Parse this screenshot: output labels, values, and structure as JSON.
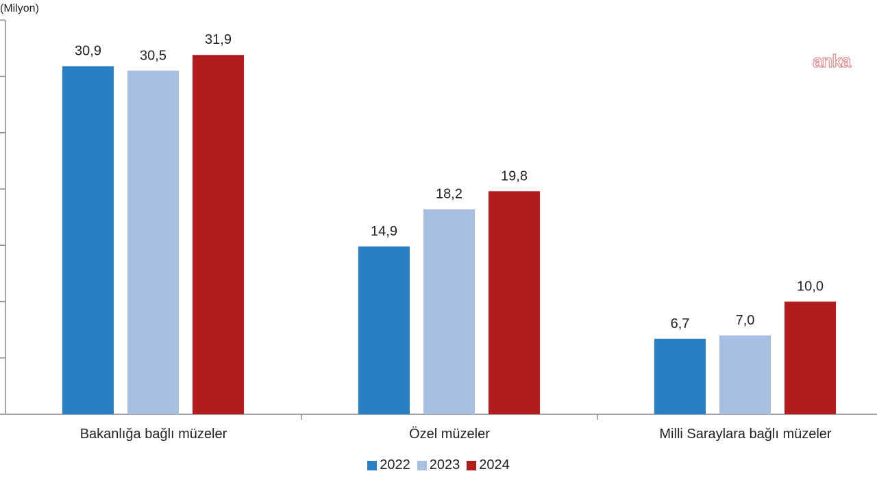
{
  "watermark": "anka",
  "chart_data": {
    "type": "bar",
    "unit_label": "(Milyon)",
    "categories": [
      "Bakanlığa bağlı müzeler",
      "Özel müzeler",
      "Milli Saraylara bağlı müzeler"
    ],
    "series": [
      {
        "name": "2022",
        "color": "#2a7fc4",
        "values": [
          30.9,
          14.9,
          6.7
        ],
        "labels": [
          "30,9",
          "14,9",
          "6,7"
        ]
      },
      {
        "name": "2023",
        "color": "#a8bfe3",
        "values": [
          30.5,
          18.2,
          7.0
        ],
        "labels": [
          "30,5",
          "18,2",
          "7,0"
        ]
      },
      {
        "name": "2024",
        "color": "#b21c1c",
        "values": [
          31.9,
          19.8,
          10.0
        ],
        "labels": [
          "31,9",
          "19,8",
          "10,0"
        ]
      }
    ],
    "ylim": [
      0,
      35
    ],
    "grid": false,
    "legend": "bottom-center"
  }
}
